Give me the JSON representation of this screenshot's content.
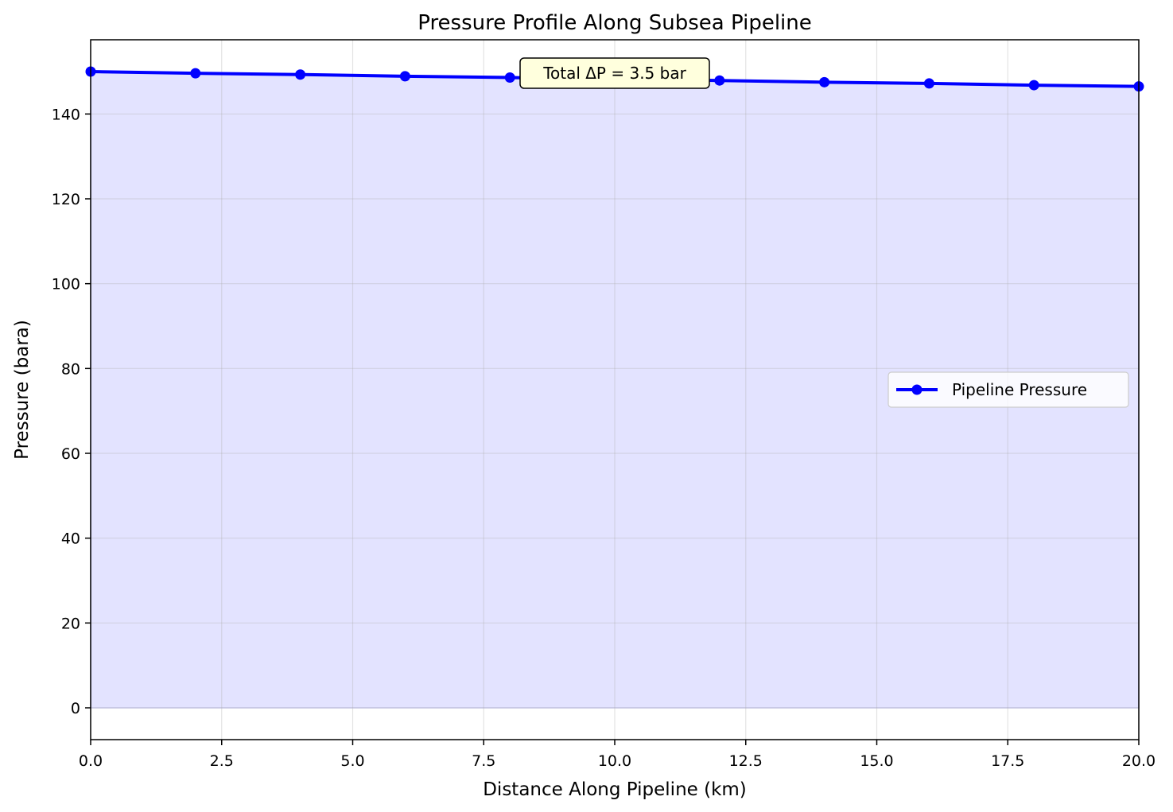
{
  "chart_data": {
    "type": "line",
    "title": "Pressure Profile Along Subsea Pipeline",
    "xlabel": "Distance Along Pipeline (km)",
    "ylabel": "Pressure (bara)",
    "xlim": [
      0,
      20
    ],
    "ylim": [
      -7.5,
      157.5
    ],
    "x_ticks": [
      0.0,
      2.5,
      5.0,
      7.5,
      10.0,
      12.5,
      15.0,
      17.5,
      20.0
    ],
    "x_tick_labels": [
      "0.0",
      "2.5",
      "5.0",
      "7.5",
      "10.0",
      "12.5",
      "15.0",
      "17.5",
      "20.0"
    ],
    "y_ticks": [
      0,
      20,
      40,
      60,
      80,
      100,
      120,
      140
    ],
    "y_tick_labels": [
      "0",
      "20",
      "40",
      "60",
      "80",
      "100",
      "120",
      "140"
    ],
    "grid": true,
    "legend_position": "center-right",
    "fill_under": true,
    "series": [
      {
        "name": "Pipeline Pressure",
        "color": "#0000ff",
        "fill_color": "#e3e3ff",
        "x": [
          0,
          2,
          4,
          6,
          8,
          10,
          12,
          14,
          16,
          18,
          20
        ],
        "y": [
          150.0,
          149.6,
          149.3,
          148.9,
          148.6,
          148.2,
          147.9,
          147.5,
          147.2,
          146.8,
          146.5
        ]
      }
    ],
    "annotation": {
      "text": "Total ΔP = 3.5 bar",
      "background": "#ffffdd"
    }
  }
}
